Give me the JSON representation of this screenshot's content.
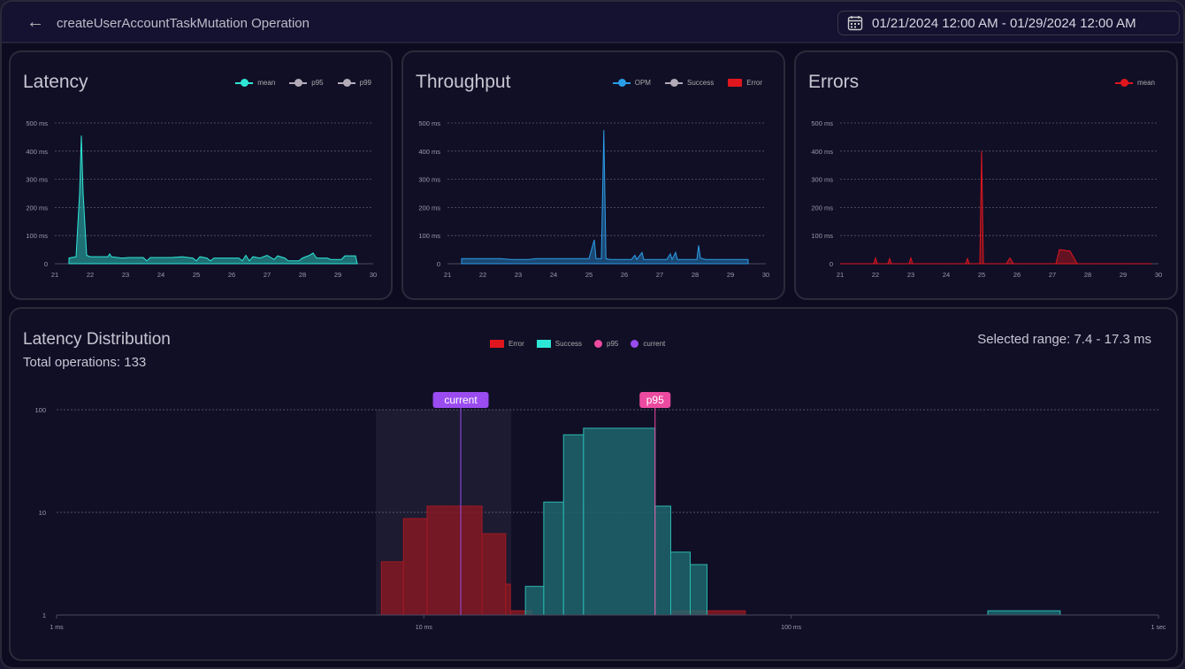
{
  "header": {
    "title": "createUserAccountTaskMutation Operation",
    "back_icon": "arrow-left-icon",
    "date_icon": "calendar-icon",
    "date_range": "01/21/2024 12:00 AM - 01/29/2024 12:00 AM"
  },
  "colors": {
    "mean": "#2ee6d6",
    "grey": "#b3aab8",
    "opm": "#2a9de8",
    "error": "#e0161e",
    "success": "#2ee6d6",
    "p95": "#ec4aa0",
    "current": "#9a4cf0"
  },
  "latency": {
    "title": "Latency",
    "legend": [
      "mean",
      "p95",
      "p99"
    ],
    "chart_data": {
      "type": "area",
      "xlim": [
        21,
        30
      ],
      "ylim": [
        0,
        500
      ],
      "x_ticks": [
        "21",
        "22",
        "23",
        "24",
        "25",
        "26",
        "27",
        "28",
        "29",
        "30"
      ],
      "y_ticks": [
        "0",
        "100 ms",
        "200 ms",
        "300 ms",
        "400 ms",
        "500 ms"
      ],
      "y_tick_values": [
        0,
        100,
        200,
        300,
        400,
        500
      ],
      "series": [
        {
          "name": "mean",
          "points": [
            [
              21.4,
              0
            ],
            [
              21.4,
              20
            ],
            [
              21.6,
              25
            ],
            [
              21.7,
              250
            ],
            [
              21.75,
              455
            ],
            [
              21.8,
              250
            ],
            [
              21.9,
              30
            ],
            [
              22,
              25
            ],
            [
              22.5,
              25
            ],
            [
              22.55,
              35
            ],
            [
              22.6,
              25
            ],
            [
              22.9,
              20
            ],
            [
              23.1,
              22
            ],
            [
              23.5,
              22
            ],
            [
              23.6,
              10
            ],
            [
              23.7,
              22
            ],
            [
              24.3,
              22
            ],
            [
              24.6,
              25
            ],
            [
              24.9,
              20
            ],
            [
              25,
              10
            ],
            [
              25.1,
              25
            ],
            [
              25.3,
              20
            ],
            [
              25.4,
              10
            ],
            [
              25.5,
              20
            ],
            [
              26.2,
              20
            ],
            [
              26.3,
              10
            ],
            [
              26.4,
              30
            ],
            [
              26.5,
              10
            ],
            [
              26.6,
              25
            ],
            [
              26.8,
              20
            ],
            [
              27,
              30
            ],
            [
              27.2,
              15
            ],
            [
              27.3,
              28
            ],
            [
              27.5,
              20
            ],
            [
              27.6,
              10
            ],
            [
              27.9,
              10
            ],
            [
              28,
              20
            ],
            [
              28.2,
              30
            ],
            [
              28.3,
              38
            ],
            [
              28.4,
              20
            ],
            [
              28.7,
              20
            ],
            [
              28.8,
              15
            ],
            [
              29.1,
              15
            ],
            [
              29.2,
              28
            ],
            [
              29.5,
              28
            ],
            [
              29.55,
              0
            ]
          ]
        }
      ]
    }
  },
  "throughput": {
    "title": "Throughput",
    "legend": [
      "OPM",
      "Success",
      "Error"
    ],
    "chart_data": {
      "type": "area",
      "xlim": [
        21,
        30
      ],
      "ylim": [
        0,
        500
      ],
      "x_ticks": [
        "21",
        "22",
        "23",
        "24",
        "25",
        "26",
        "27",
        "28",
        "29",
        "30"
      ],
      "y_ticks": [
        "0",
        "100 ms",
        "200 ms",
        "300 ms",
        "400 ms",
        "500 ms"
      ],
      "y_tick_values": [
        0,
        100,
        200,
        300,
        400,
        500
      ],
      "series": [
        {
          "name": "OPM",
          "points": [
            [
              21.4,
              0
            ],
            [
              21.4,
              18
            ],
            [
              22.5,
              18
            ],
            [
              22.8,
              15
            ],
            [
              23.3,
              15
            ],
            [
              23.5,
              18
            ],
            [
              25.0,
              18
            ],
            [
              25.15,
              85
            ],
            [
              25.2,
              18
            ],
            [
              25.35,
              18
            ],
            [
              25.42,
              475
            ],
            [
              25.48,
              18
            ],
            [
              25.6,
              15
            ],
            [
              26.2,
              15
            ],
            [
              26.3,
              30
            ],
            [
              26.35,
              15
            ],
            [
              26.5,
              40
            ],
            [
              26.55,
              15
            ],
            [
              27.2,
              15
            ],
            [
              27.3,
              35
            ],
            [
              27.35,
              15
            ],
            [
              27.45,
              40
            ],
            [
              27.5,
              15
            ],
            [
              28.05,
              15
            ],
            [
              28.1,
              65
            ],
            [
              28.15,
              20
            ],
            [
              28.3,
              15
            ],
            [
              29.5,
              15
            ],
            [
              29.5,
              0
            ]
          ]
        }
      ]
    }
  },
  "errors": {
    "title": "Errors",
    "legend": [
      "mean"
    ],
    "chart_data": {
      "type": "area",
      "xlim": [
        21,
        30
      ],
      "ylim": [
        0,
        500
      ],
      "x_ticks": [
        "21",
        "22",
        "23",
        "24",
        "25",
        "26",
        "27",
        "28",
        "29",
        "30"
      ],
      "y_ticks": [
        "0",
        "100 ms",
        "200 ms",
        "300 ms",
        "400 ms",
        "500 ms"
      ],
      "y_tick_values": [
        0,
        100,
        200,
        300,
        400,
        500
      ],
      "series": [
        {
          "name": "mean",
          "points": [
            [
              21,
              0
            ],
            [
              21.95,
              0
            ],
            [
              22,
              20
            ],
            [
              22.05,
              0
            ],
            [
              22.35,
              0
            ],
            [
              22.4,
              18
            ],
            [
              22.45,
              0
            ],
            [
              22.95,
              0
            ],
            [
              23,
              20
            ],
            [
              23.05,
              0
            ],
            [
              24.55,
              0
            ],
            [
              24.6,
              18
            ],
            [
              24.65,
              0
            ],
            [
              24.95,
              0
            ],
            [
              25,
              400
            ],
            [
              25.05,
              0
            ],
            [
              25.7,
              0
            ],
            [
              25.8,
              20
            ],
            [
              25.9,
              0
            ],
            [
              27.1,
              0
            ],
            [
              27.2,
              50
            ],
            [
              27.5,
              45
            ],
            [
              27.7,
              0
            ],
            [
              29.8,
              0
            ]
          ]
        }
      ]
    }
  },
  "distribution": {
    "title": "Latency Distribution",
    "total_label": "Total operations: 133",
    "selected_range": "Selected range: 7.4 - 17.3 ms",
    "legend": [
      "Error",
      "Success",
      "p95",
      "current"
    ],
    "chart_data": {
      "type": "bar",
      "x_scale": "log",
      "y_scale": "log",
      "xlim_ms": [
        1,
        1000
      ],
      "ylim": [
        1,
        100
      ],
      "x_ticks": [
        "1 ms",
        "10 ms",
        "100 ms",
        "1 sec"
      ],
      "x_tick_values": [
        1,
        10,
        100,
        1000
      ],
      "y_ticks": [
        "1",
        "10",
        "100"
      ],
      "y_tick_values": [
        1,
        10,
        100
      ],
      "selected_range_ms": [
        7.4,
        17.3
      ],
      "markers": [
        {
          "name": "current",
          "value_ms": 12.6
        },
        {
          "name": "p95",
          "value_ms": 42.6
        }
      ],
      "series": [
        {
          "name": "Error",
          "bins": [
            [
              7.66,
              8.8,
              3.3
            ],
            [
              8.8,
              10.2,
              8.7
            ],
            [
              10.2,
              14.4,
              11.5
            ],
            [
              14.4,
              16.7,
              6.2
            ],
            [
              16.7,
              17.2,
              2
            ],
            [
              17.2,
              19.7,
              1.1
            ],
            [
              47.6,
              75,
              1.1
            ]
          ]
        },
        {
          "name": "Success",
          "bins": [
            [
              18.9,
              21.2,
              1.9
            ],
            [
              21.2,
              24,
              12.6
            ],
            [
              24,
              27.2,
              57
            ],
            [
              27.2,
              42.6,
              66
            ],
            [
              42.6,
              47,
              11.5
            ],
            [
              47,
              53.1,
              4.1
            ],
            [
              53.1,
              59,
              3.1
            ],
            [
              343,
              540,
              1.1
            ]
          ]
        }
      ]
    }
  }
}
